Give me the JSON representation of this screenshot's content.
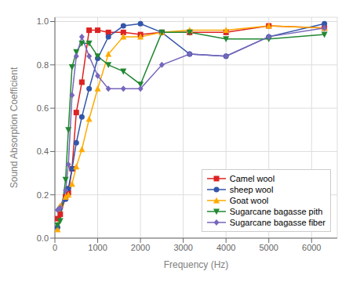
{
  "chart_data": {
    "type": "line",
    "x_label": "Frequency (Hz)",
    "y_label": "Sound Absorption Coefficient",
    "x": [
      63,
      125,
      250,
      315,
      400,
      500,
      630,
      800,
      1000,
      1250,
      1600,
      2000,
      2500,
      3150,
      4000,
      5000,
      6300
    ],
    "series": [
      {
        "name": "Camel wool",
        "color": "#dd2222",
        "marker": "square",
        "values": [
          0.09,
          0.11,
          0.19,
          0.21,
          0.32,
          0.58,
          0.72,
          0.96,
          0.96,
          0.95,
          0.95,
          0.94,
          0.95,
          0.95,
          0.95,
          0.98,
          0.97
        ]
      },
      {
        "name": "sheep wool",
        "color": "#3355aa",
        "marker": "circle",
        "values": [
          0.05,
          0.14,
          0.18,
          0.23,
          0.32,
          0.44,
          0.56,
          0.69,
          0.83,
          0.93,
          0.98,
          0.99,
          0.95,
          0.85,
          0.84,
          0.93,
          0.99
        ]
      },
      {
        "name": "Goat wool",
        "color": "#ffaa00",
        "marker": "triangle-up",
        "values": [
          0.04,
          0.15,
          0.19,
          0.2,
          0.25,
          0.33,
          0.41,
          0.55,
          0.69,
          0.85,
          0.93,
          0.93,
          0.95,
          0.96,
          0.96,
          0.98,
          0.97
        ]
      },
      {
        "name": "Sugarcane bagasse pith",
        "color": "#228833",
        "marker": "triangle-down",
        "values": [
          0.06,
          0.08,
          0.27,
          0.5,
          0.79,
          0.86,
          0.9,
          0.9,
          0.84,
          0.8,
          0.77,
          0.71,
          0.95,
          0.95,
          0.92,
          0.92,
          0.94
        ]
      },
      {
        "name": "Sugarcane bagasse fiber",
        "color": "#7766bb",
        "marker": "diamond",
        "values": [
          0.13,
          0.14,
          0.22,
          0.34,
          0.66,
          0.84,
          0.93,
          0.84,
          0.75,
          0.69,
          0.69,
          0.69,
          0.8,
          0.85,
          0.84,
          0.93,
          0.97
        ]
      }
    ],
    "xlim": [
      0,
      6600
    ],
    "ylim": [
      0.0,
      1.02
    ],
    "xticks": [
      0,
      1000,
      2000,
      3000,
      4000,
      5000,
      6000
    ],
    "yticks": [
      {
        "value": 0,
        "label": "0.0"
      },
      0.2,
      0.4,
      0.6,
      0.8,
      {
        "value": 1,
        "label": "1.0"
      }
    ],
    "grid": true,
    "legend": "lower right"
  }
}
